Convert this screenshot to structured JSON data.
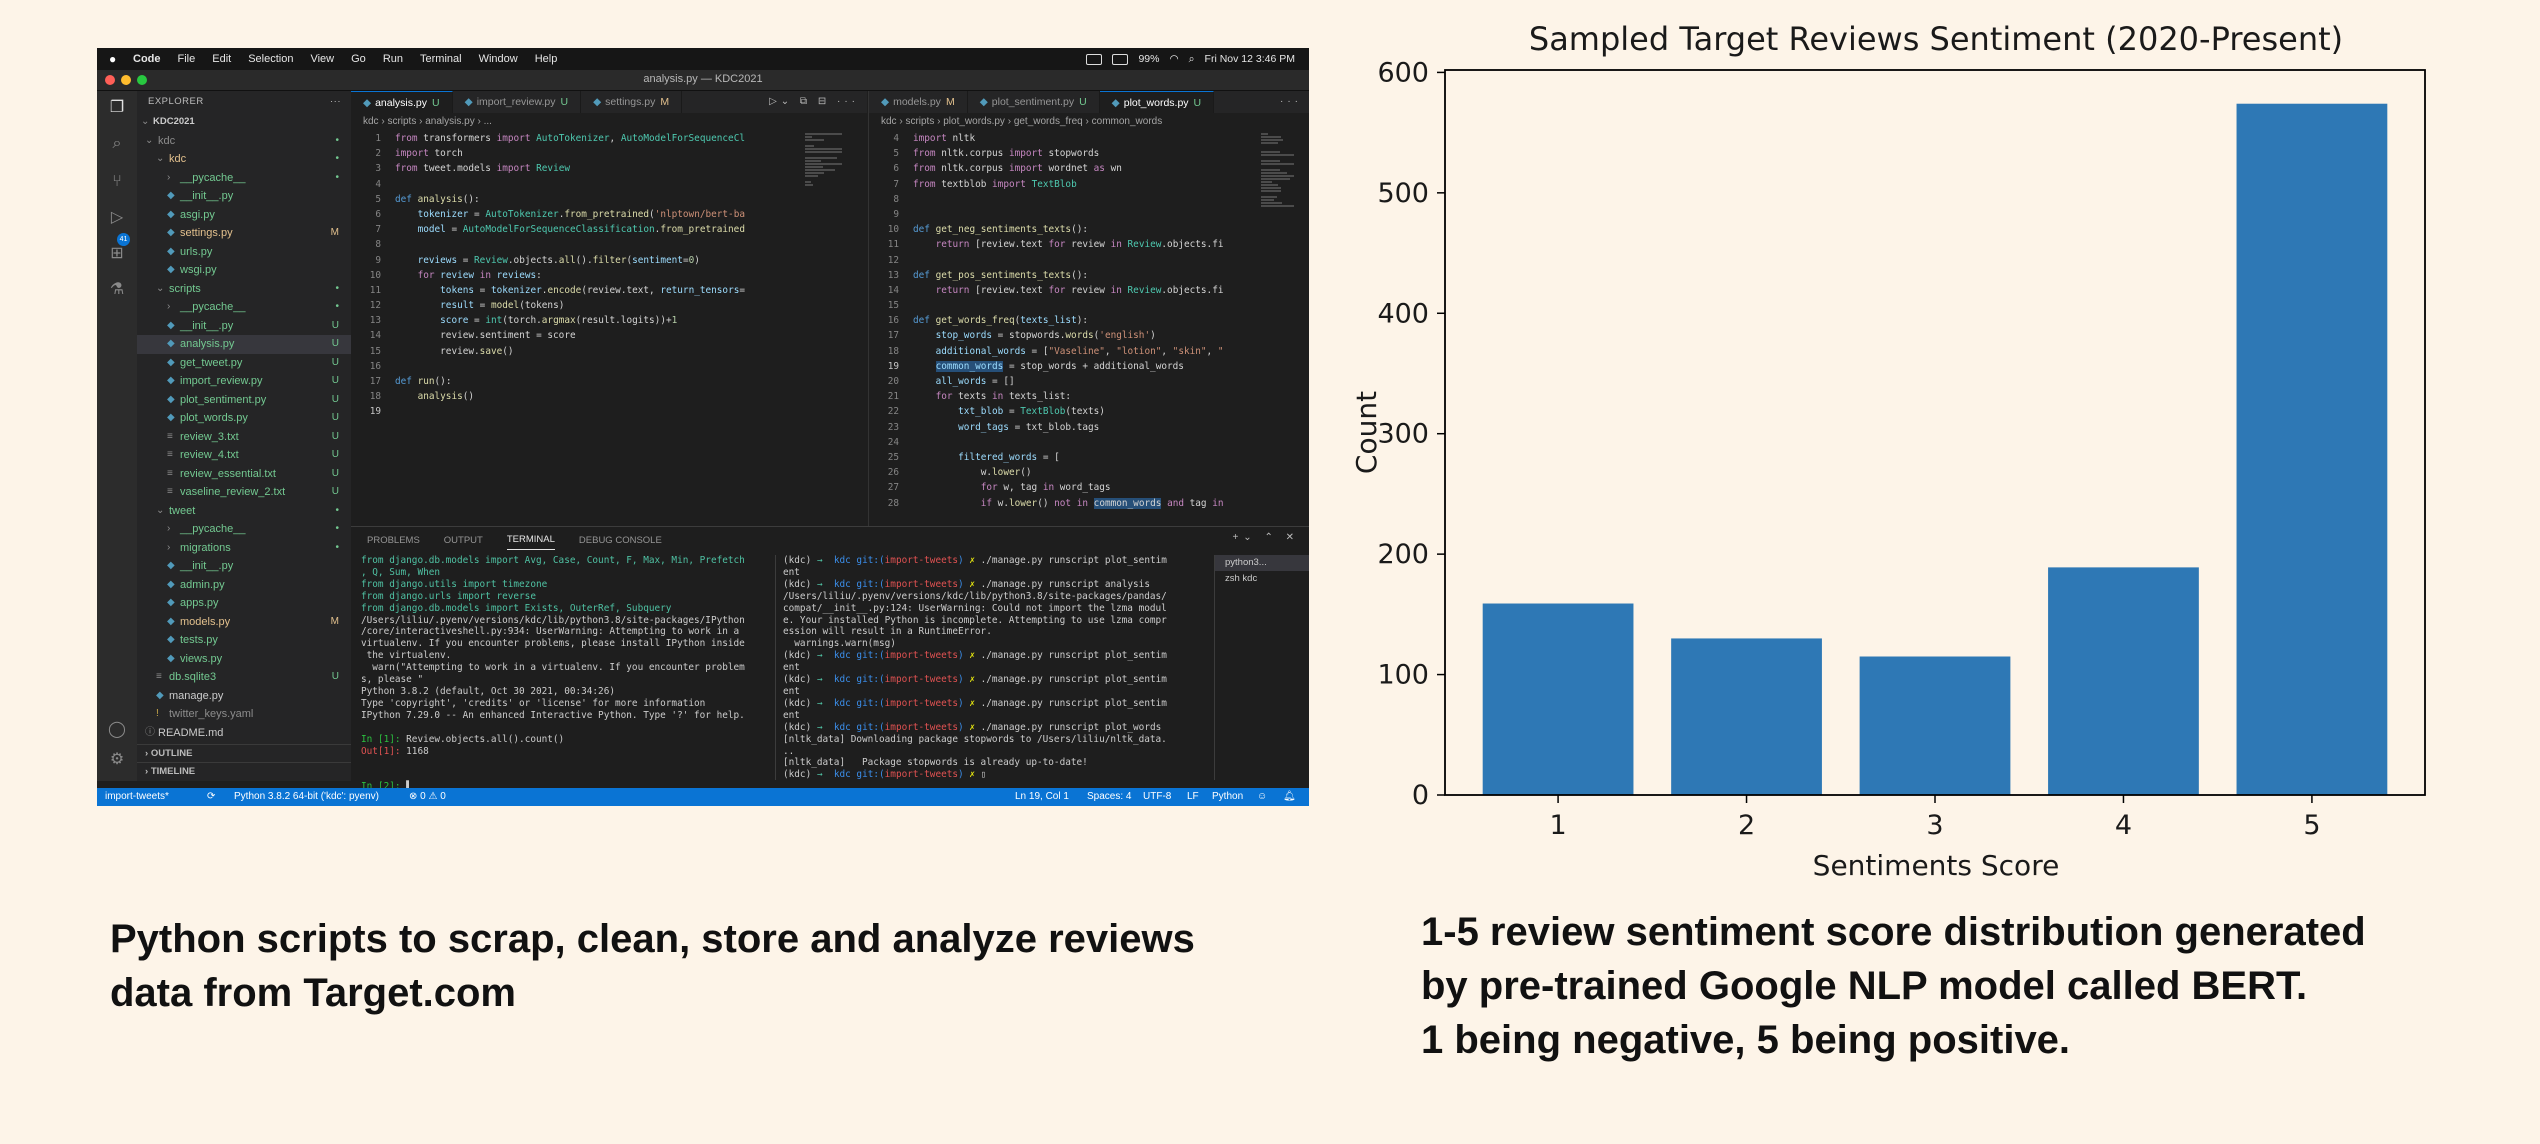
{
  "screenshot": {
    "menubar": {
      "items": [
        "Code",
        "File",
        "Edit",
        "Selection",
        "View",
        "Go",
        "Run",
        "Terminal",
        "Window",
        "Help"
      ],
      "battery": "99%",
      "clock": "Fri Nov 12  3:46 PM"
    },
    "window_title": "analysis.py — KDC2021",
    "activity_badge": "41",
    "sidebar": {
      "explorer_label": "EXPLORER",
      "project": "KDC2021",
      "tree": [
        {
          "label": "kdc",
          "status": "",
          "color": "dim",
          "indent": 0,
          "icon": "chev-open"
        },
        {
          "label": "kdc",
          "status": "",
          "color": "m",
          "indent": 1,
          "icon": "chev-open"
        },
        {
          "label": "__pycache__",
          "status": "",
          "color": "u",
          "indent": 2,
          "icon": "chev-closed"
        },
        {
          "label": "__init__.py",
          "status": "",
          "color": "u",
          "indent": 2,
          "icon": "py"
        },
        {
          "label": "asgi.py",
          "status": "",
          "color": "u",
          "indent": 2,
          "icon": "py"
        },
        {
          "label": "settings.py",
          "status": "M",
          "color": "m",
          "indent": 2,
          "icon": "py"
        },
        {
          "label": "urls.py",
          "status": "",
          "color": "u",
          "indent": 2,
          "icon": "py"
        },
        {
          "label": "wsgi.py",
          "status": "",
          "color": "u",
          "indent": 2,
          "icon": "py"
        },
        {
          "label": "scripts",
          "status": "",
          "color": "u",
          "indent": 1,
          "icon": "chev-open"
        },
        {
          "label": "__pycache__",
          "status": "",
          "color": "u",
          "indent": 2,
          "icon": "chev-closed"
        },
        {
          "label": "__init__.py",
          "status": "U",
          "color": "u",
          "indent": 2,
          "icon": "py"
        },
        {
          "label": "analysis.py",
          "status": "U",
          "color": "u",
          "indent": 2,
          "icon": "py",
          "selected": true
        },
        {
          "label": "get_tweet.py",
          "status": "U",
          "color": "u",
          "indent": 2,
          "icon": "py"
        },
        {
          "label": "import_review.py",
          "status": "U",
          "color": "u",
          "indent": 2,
          "icon": "py"
        },
        {
          "label": "plot_sentiment.py",
          "status": "U",
          "color": "u",
          "indent": 2,
          "icon": "py"
        },
        {
          "label": "plot_words.py",
          "status": "U",
          "color": "u",
          "indent": 2,
          "icon": "py"
        },
        {
          "label": "review_3.txt",
          "status": "U",
          "color": "u",
          "indent": 2,
          "icon": "txt"
        },
        {
          "label": "review_4.txt",
          "status": "U",
          "color": "u",
          "indent": 2,
          "icon": "txt"
        },
        {
          "label": "review_essential.txt",
          "status": "U",
          "color": "u",
          "indent": 2,
          "icon": "txt"
        },
        {
          "label": "vaseline_review_2.txt",
          "status": "U",
          "color": "u",
          "indent": 2,
          "icon": "txt"
        },
        {
          "label": "tweet",
          "status": "",
          "color": "u",
          "indent": 1,
          "icon": "chev-open"
        },
        {
          "label": "__pycache__",
          "status": "",
          "color": "u",
          "indent": 2,
          "icon": "chev-closed"
        },
        {
          "label": "migrations",
          "status": "",
          "color": "u",
          "indent": 2,
          "icon": "chev-closed"
        },
        {
          "label": "__init__.py",
          "status": "",
          "color": "u",
          "indent": 2,
          "icon": "py"
        },
        {
          "label": "admin.py",
          "status": "",
          "color": "u",
          "indent": 2,
          "icon": "py"
        },
        {
          "label": "apps.py",
          "status": "",
          "color": "u",
          "indent": 2,
          "icon": "py"
        },
        {
          "label": "models.py",
          "status": "M",
          "color": "m",
          "indent": 2,
          "icon": "py"
        },
        {
          "label": "tests.py",
          "status": "",
          "color": "u",
          "indent": 2,
          "icon": "py"
        },
        {
          "label": "views.py",
          "status": "",
          "color": "u",
          "indent": 2,
          "icon": "py"
        },
        {
          "label": "db.sqlite3",
          "status": "U",
          "color": "u",
          "indent": 1,
          "icon": "db"
        },
        {
          "label": "manage.py",
          "status": "",
          "color": "w",
          "indent": 1,
          "icon": "py"
        },
        {
          "label": "twitter_keys.yaml",
          "status": "",
          "color": "dim",
          "indent": 1,
          "icon": "yaml"
        },
        {
          "label": "README.md",
          "status": "",
          "color": "w",
          "indent": 0,
          "icon": "info"
        }
      ],
      "outline": "OUTLINE",
      "timeline": "TIMELINE"
    },
    "editor_left": {
      "tabs": [
        {
          "label": "analysis.py",
          "mark": "U",
          "active": true
        },
        {
          "label": "import_review.py",
          "mark": "U"
        },
        {
          "label": "settings.py",
          "mark": "M"
        }
      ],
      "breadcrumb": "kdc › scripts › analysis.py › ...",
      "lines": [
        {
          "no": "1",
          "html": "<span class=\"k\">from</span> transformers <span class=\"k\">import</span> <span class=\"t\">AutoTokenizer</span>, <span class=\"t\">AutoModelForSequenceCl</span>"
        },
        {
          "no": "2",
          "html": "<span class=\"k\">import</span> torch"
        },
        {
          "no": "3",
          "html": "<span class=\"k\">from</span> tweet.models <span class=\"k\">import</span> <span class=\"t\">Review</span>"
        },
        {
          "no": "4",
          "html": ""
        },
        {
          "no": "5",
          "html": "<span class=\"b\">def</span> <span class=\"f\">analysis</span>():"
        },
        {
          "no": "6",
          "html": "    <span class=\"v\">tokenizer</span> = <span class=\"t\">AutoTokenizer</span>.<span class=\"f\">from_pretrained</span>(<span class=\"s\">'nlptown/bert-ba</span>"
        },
        {
          "no": "7",
          "html": "    <span class=\"v\">model</span> = <span class=\"t\">AutoModelForSequenceClassification</span>.<span class=\"f\">from_pretrained</span>"
        },
        {
          "no": "8",
          "html": ""
        },
        {
          "no": "9",
          "html": "    <span class=\"v\">reviews</span> = <span class=\"t\">Review</span>.objects.<span class=\"f\">all</span>().<span class=\"f\">filter</span>(<span class=\"v\">sentiment</span>=<span class=\"n\">0</span>)"
        },
        {
          "no": "10",
          "html": "    <span class=\"k\">for</span> <span class=\"v\">review</span> <span class=\"k\">in</span> <span class=\"v\">reviews</span>:"
        },
        {
          "no": "11",
          "html": "        <span class=\"v\">tokens</span> = <span class=\"v\">tokenizer</span>.<span class=\"f\">encode</span>(review.text, <span class=\"v\">return_tensors</span>="
        },
        {
          "no": "12",
          "html": "        <span class=\"v\">result</span> = <span class=\"f\">model</span>(tokens)"
        },
        {
          "no": "13",
          "html": "        <span class=\"v\">score</span> = <span class=\"t\">int</span>(torch.<span class=\"f\">argmax</span>(result.logits))+<span class=\"n\">1</span>"
        },
        {
          "no": "14",
          "html": "        review.sentiment = score"
        },
        {
          "no": "15",
          "html": "        review.<span class=\"f\">save</span>()"
        },
        {
          "no": "16",
          "html": ""
        },
        {
          "no": "17",
          "html": "<span class=\"b\">def</span> <span class=\"f\">run</span>():"
        },
        {
          "no": "18",
          "html": "    <span class=\"f\">analysis</span>()"
        },
        {
          "no": "19",
          "html": "",
          "cur": true
        }
      ]
    },
    "editor_right": {
      "tabs": [
        {
          "label": "models.py",
          "mark": "M"
        },
        {
          "label": "plot_sentiment.py",
          "mark": "U"
        },
        {
          "label": "plot_words.py",
          "mark": "U",
          "active": true
        }
      ],
      "breadcrumb": "kdc › scripts › plot_words.py › get_words_freq › common_words",
      "lines": [
        {
          "no": "4",
          "html": "<span class=\"k\">import</span> nltk"
        },
        {
          "no": "5",
          "html": "<span class=\"k\">from</span> nltk.corpus <span class=\"k\">import</span> stopwords"
        },
        {
          "no": "6",
          "html": "<span class=\"k\">from</span> nltk.corpus <span class=\"k\">import</span> wordnet <span class=\"k\">as</span> wn"
        },
        {
          "no": "7",
          "html": "<span class=\"k\">from</span> textblob <span class=\"k\">import</span> <span class=\"t\">TextBlob</span>"
        },
        {
          "no": "8",
          "html": ""
        },
        {
          "no": "9",
          "html": ""
        },
        {
          "no": "10",
          "html": "<span class=\"b\">def</span> <span class=\"f\">get_neg_sentiments_texts</span>():"
        },
        {
          "no": "11",
          "html": "    <span class=\"k\">return</span> [review.text <span class=\"k\">for</span> review <span class=\"k\">in</span> <span class=\"t\">Review</span>.objects.fi"
        },
        {
          "no": "12",
          "html": ""
        },
        {
          "no": "13",
          "html": "<span class=\"b\">def</span> <span class=\"f\">get_pos_sentiments_texts</span>():"
        },
        {
          "no": "14",
          "html": "    <span class=\"k\">return</span> [review.text <span class=\"k\">for</span> review <span class=\"k\">in</span> <span class=\"t\">Review</span>.objects.fi"
        },
        {
          "no": "15",
          "html": ""
        },
        {
          "no": "16",
          "html": "<span class=\"b\">def</span> <span class=\"f\">get_words_freq</span>(<span class=\"v\">texts_list</span>):"
        },
        {
          "no": "17",
          "html": "    <span class=\"v\">stop_words</span> = stopwords.<span class=\"f\">words</span>(<span class=\"s\">'english'</span>)"
        },
        {
          "no": "18",
          "html": "    <span class=\"v\">additional_words</span> = [<span class=\"s\">\"Vaseline\"</span>, <span class=\"s\">\"lotion\"</span>, <span class=\"s\">\"skin\"</span>, <span class=\"s\">\"</span>"
        },
        {
          "no": "19",
          "html": "    <span class=\"v hl\">common_words</span> = stop_words + additional_words",
          "cur": true
        },
        {
          "no": "20",
          "html": "    <span class=\"v\">all_words</span> = []"
        },
        {
          "no": "21",
          "html": "    <span class=\"k\">for</span> texts <span class=\"k\">in</span> texts_list:"
        },
        {
          "no": "22",
          "html": "        <span class=\"v\">txt_blob</span> = <span class=\"t\">TextBlob</span>(texts)"
        },
        {
          "no": "23",
          "html": "        <span class=\"v\">word_tags</span> = txt_blob.tags"
        },
        {
          "no": "24",
          "html": ""
        },
        {
          "no": "25",
          "html": "        <span class=\"v\">filtered_words</span> = ["
        },
        {
          "no": "26",
          "html": "            w.<span class=\"f\">lower</span>()"
        },
        {
          "no": "27",
          "html": "            <span class=\"k\">for</span> w, tag <span class=\"k\">in</span> word_tags"
        },
        {
          "no": "28",
          "html": "            <span class=\"k\">if</span> w.<span class=\"f\">lower</span>() <span class=\"k\">not in</span> <span class=\"hl\">common_words</span> <span class=\"k\">and</span> tag <span class=\"k\">in</span>"
        }
      ]
    },
    "panel": {
      "tabs": [
        "PROBLEMS",
        "OUTPUT",
        "TERMINAL",
        "DEBUG CONSOLE"
      ],
      "active_tab": "TERMINAL",
      "term_left": "<span class=\"tg\">from django.db.models import Avg, Case, Count, F, Max, Min, Prefetch\n, Q, Sum, When</span>\n<span class=\"tg\">from django.utils import timezone\nfrom django.urls import reverse\nfrom django.db.models import Exists, OuterRef, Subquery</span>\n/Users/liliu/.pyenv/versions/kdc/lib/python3.8/site-packages/IPython\n/core/interactiveshell.py:934: UserWarning: Attempting to work in a\nvirtualenv. If you encounter problems, please install IPython inside\n the virtualenv.\n  warn(\"Attempting to work in a virtualenv. If you encounter problem\ns, please \"\nPython 3.8.2 (default, Oct 30 2021, 00:34:26)\nType 'copyright', 'credits' or 'license' for more information\nIPython 7.29.0 -- An enhanced Interactive Python. Type '?' for help.\n\n<span class=\"tgr\">In [1]:</span> Review.objects.all().count()\n<span class=\"tr\">Out[1]:</span> 1168\n\n\n<span class=\"tgr\">In [2]:</span> ▌",
      "term_right": "(kdc) <span class=\"tg\">→</span>  <span class=\"tb\">kdc</span> <span class=\"tb\">git:(</span><span class=\"tr\">import-tweets</span><span class=\"tb\">)</span> <span class=\"ty\">✗</span> ./manage.py runscript plot_sentim\nent\n(kdc) <span class=\"tg\">→</span>  <span class=\"tb\">kdc</span> <span class=\"tb\">git:(</span><span class=\"tr\">import-tweets</span><span class=\"tb\">)</span> <span class=\"ty\">✗</span> ./manage.py runscript analysis\n/Users/liliu/.pyenv/versions/kdc/lib/python3.8/site-packages/pandas/\ncompat/__init__.py:124: UserWarning: Could not import the lzma modul\ne. Your installed Python is incomplete. Attempting to use lzma compr\nession will result in a RuntimeError.\n  warnings.warn(msg)\n(kdc) <span class=\"tg\">→</span>  <span class=\"tb\">kdc</span> <span class=\"tb\">git:(</span><span class=\"tr\">import-tweets</span><span class=\"tb\">)</span> <span class=\"ty\">✗</span> ./manage.py runscript plot_sentim\nent\n(kdc) <span class=\"tg\">→</span>  <span class=\"tb\">kdc</span> <span class=\"tb\">git:(</span><span class=\"tr\">import-tweets</span><span class=\"tb\">)</span> <span class=\"ty\">✗</span> ./manage.py runscript plot_sentim\nent\n(kdc) <span class=\"tg\">→</span>  <span class=\"tb\">kdc</span> <span class=\"tb\">git:(</span><span class=\"tr\">import-tweets</span><span class=\"tb\">)</span> <span class=\"ty\">✗</span> ./manage.py runscript plot_sentim\nent\n(kdc) <span class=\"tg\">→</span>  <span class=\"tb\">kdc</span> <span class=\"tb\">git:(</span><span class=\"tr\">import-tweets</span><span class=\"tb\">)</span> <span class=\"ty\">✗</span> ./manage.py runscript plot_words\n[nltk_data] Downloading package stopwords to /Users/liliu/nltk_data.\n..\n[nltk_data]   Package stopwords is already up-to-date!\n(kdc) <span class=\"tg\">→</span>  <span class=\"tb\">kdc</span> <span class=\"tb\">git:(</span><span class=\"tr\">import-tweets</span><span class=\"tb\">)</span> <span class=\"ty\">✗</span> ▯",
      "term_list": [
        "python3...",
        "zsh kdc"
      ]
    },
    "statusbar": {
      "branch": "import-tweets*",
      "python": "Python 3.8.2 64-bit ('kdc': pyenv)",
      "problems": "⊗ 0 ⚠ 0",
      "position": "Ln 19, Col 1",
      "spaces": "Spaces: 4",
      "encoding": "UTF-8",
      "eol": "LF",
      "language": "Python"
    }
  },
  "chart_data": {
    "type": "bar",
    "title": "Sampled Target Reviews Sentiment (2020-Present)",
    "xlabel": "Sentiments Score",
    "ylabel": "Count",
    "categories": [
      "1",
      "2",
      "3",
      "4",
      "5"
    ],
    "values": [
      159,
      130,
      115,
      189,
      574
    ],
    "yticks": [
      0,
      100,
      200,
      300,
      400,
      500,
      600
    ],
    "ylim": [
      0,
      602
    ],
    "bar_color": "#2e78b5"
  },
  "captions": {
    "left": "Python scripts to scrap, clean, store and analyze reviews data from Target.com",
    "right": [
      "1-5 review sentiment score distribution generated",
      "by pre-trained Google NLP model called BERT.",
      "1 being negative, 5 being positive."
    ]
  }
}
